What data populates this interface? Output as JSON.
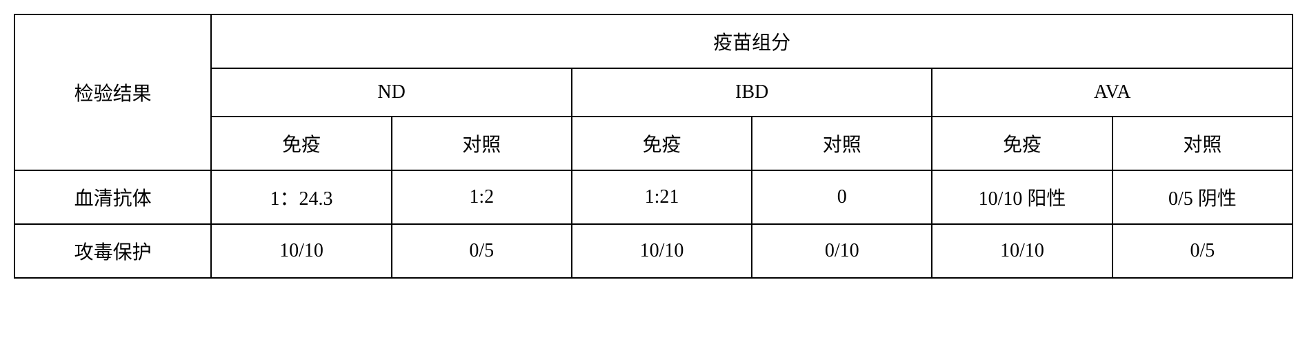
{
  "table": {
    "type": "table",
    "font_family": "SimSun",
    "border_color": "#000000",
    "border_width": 2,
    "background_color": "#ffffff",
    "text_color": "#000000",
    "header_fontsize": 28,
    "cell_fontsize": 28,
    "row_header_label": "检验结果",
    "spanning_header": "疫苗组分",
    "group_headers": [
      "ND",
      "IBD",
      "AVA"
    ],
    "sub_headers": [
      "免疫",
      "对照",
      "免疫",
      "对照",
      "免疫",
      "对照"
    ],
    "rows": [
      {
        "label": "血清抗体",
        "values": [
          "1：24.3",
          "1:2",
          "1:21",
          "0",
          "10/10 阳性",
          "0/5 阴性"
        ]
      },
      {
        "label": "攻毒保护",
        "values": [
          "10/10",
          "0/5",
          "10/10",
          "0/10",
          "10/10",
          "0/5"
        ]
      }
    ],
    "column_widths": {
      "row_header_pct": 15.4,
      "data_col_pct": 14.1
    }
  }
}
